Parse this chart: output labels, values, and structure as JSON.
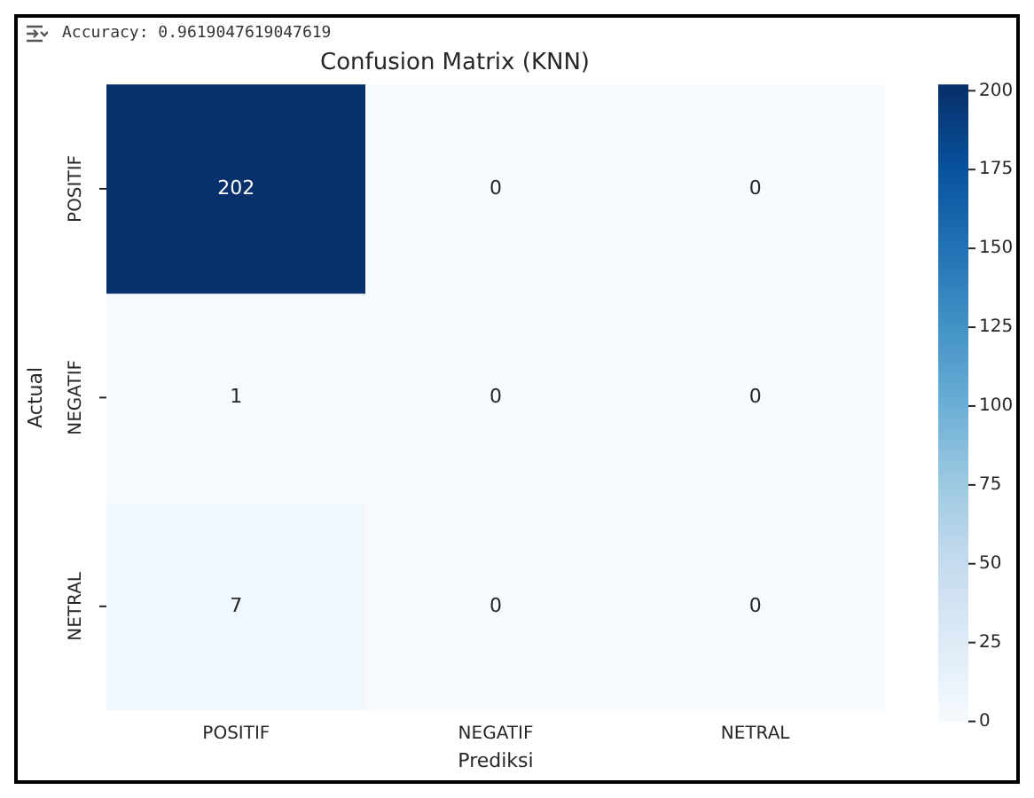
{
  "chart_data": {
    "type": "heatmap",
    "title": "Confusion Matrix (KNN)",
    "xlabel": "Prediksi",
    "ylabel": "Actual",
    "categories": [
      "POSITIF",
      "NEGATIF",
      "NETRAL"
    ],
    "y_categories": [
      "POSITIF",
      "NEGATIF",
      "NETRAL"
    ],
    "cells": [
      [
        202,
        0,
        0
      ],
      [
        1,
        0,
        0
      ],
      [
        7,
        0,
        0
      ]
    ],
    "clim": [
      0,
      202
    ],
    "cticks": [
      0,
      25,
      50,
      75,
      100,
      125,
      150,
      175,
      200
    ],
    "data_labels": true,
    "annotations": [
      "Accuracy: 0.9619047619047619"
    ]
  }
}
